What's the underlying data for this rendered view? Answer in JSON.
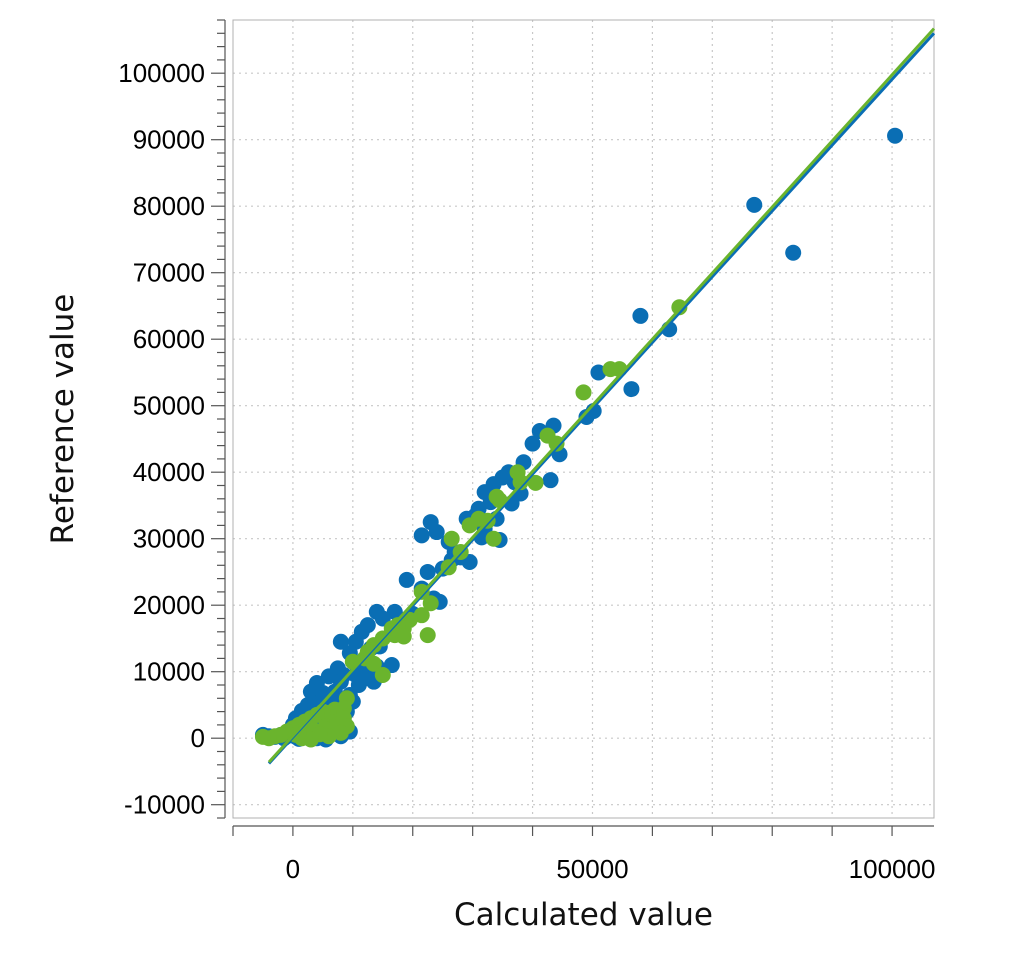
{
  "chart_data": {
    "type": "scatter",
    "xlabel": "Calculated value",
    "ylabel": "Reference value",
    "xlim": [
      -10000,
      107000
    ],
    "ylim": [
      -12000,
      108000
    ],
    "x_ticks": [
      0,
      50000,
      100000
    ],
    "x_tick_labels": [
      "0",
      "50000",
      "100000"
    ],
    "y_ticks": [
      -10000,
      0,
      10000,
      20000,
      30000,
      40000,
      50000,
      60000,
      70000,
      80000,
      90000,
      100000
    ],
    "y_tick_labels": [
      "-10000",
      "0",
      "10000",
      "20000",
      "30000",
      "40000",
      "50000",
      "60000",
      "70000",
      "80000",
      "90000",
      "100000"
    ],
    "grid": true,
    "legend": "none",
    "series": [
      {
        "color": "#0a6eb4",
        "points": [
          [
            100500,
            90600
          ],
          [
            77000,
            80200
          ],
          [
            83500,
            73000
          ],
          [
            58000,
            63500
          ],
          [
            62800,
            61500
          ],
          [
            51000,
            55000
          ],
          [
            56500,
            52500
          ],
          [
            50200,
            49200
          ],
          [
            49000,
            48300
          ],
          [
            43500,
            47000
          ],
          [
            41200,
            46200
          ],
          [
            40000,
            44300
          ],
          [
            44500,
            42700
          ],
          [
            38500,
            41500
          ],
          [
            36000,
            40000
          ],
          [
            35000,
            39200
          ],
          [
            33500,
            38200
          ],
          [
            37000,
            38500
          ],
          [
            43000,
            38800
          ],
          [
            38000,
            36800
          ],
          [
            32000,
            37000
          ],
          [
            36500,
            35300
          ],
          [
            33000,
            35500
          ],
          [
            31000,
            34500
          ],
          [
            30500,
            33500
          ],
          [
            29000,
            33000
          ],
          [
            34000,
            33000
          ],
          [
            32000,
            31500
          ],
          [
            31500,
            30200
          ],
          [
            34500,
            29800
          ],
          [
            21500,
            30500
          ],
          [
            23000,
            32500
          ],
          [
            24000,
            31000
          ],
          [
            26000,
            29500
          ],
          [
            27000,
            28000
          ],
          [
            28000,
            27200
          ],
          [
            29500,
            26500
          ],
          [
            25000,
            25500
          ],
          [
            22500,
            25000
          ],
          [
            26500,
            26800
          ],
          [
            19000,
            23800
          ],
          [
            21500,
            22500
          ],
          [
            23500,
            21000
          ],
          [
            24500,
            20500
          ],
          [
            17000,
            19000
          ],
          [
            20000,
            18700
          ],
          [
            18500,
            17800
          ],
          [
            15000,
            18000
          ],
          [
            14000,
            19000
          ],
          [
            12500,
            17000
          ],
          [
            16500,
            15700
          ],
          [
            18000,
            16500
          ],
          [
            11500,
            16000
          ],
          [
            10500,
            14500
          ],
          [
            8000,
            14500
          ],
          [
            13000,
            13500
          ],
          [
            14500,
            13800
          ],
          [
            9500,
            12800
          ],
          [
            11500,
            11500
          ],
          [
            12500,
            10500
          ],
          [
            14000,
            10800
          ],
          [
            16500,
            11000
          ],
          [
            7500,
            10500
          ],
          [
            8500,
            9500
          ],
          [
            10500,
            9500
          ],
          [
            12000,
            9000
          ],
          [
            13500,
            8500
          ],
          [
            6000,
            9300
          ],
          [
            8000,
            8500
          ],
          [
            11000,
            8000
          ],
          [
            4000,
            8300
          ],
          [
            3000,
            7000
          ],
          [
            5000,
            6800
          ],
          [
            7000,
            7000
          ],
          [
            9500,
            6500
          ],
          [
            6500,
            5600
          ],
          [
            8000,
            5000
          ],
          [
            10000,
            5500
          ],
          [
            2500,
            5000
          ],
          [
            4000,
            5200
          ],
          [
            5500,
            4500
          ],
          [
            7500,
            3500
          ],
          [
            9000,
            4000
          ],
          [
            1500,
            4100
          ],
          [
            3000,
            3500
          ],
          [
            4500,
            3000
          ],
          [
            6000,
            2500
          ],
          [
            8500,
            2000
          ],
          [
            500,
            3000
          ],
          [
            2000,
            2500
          ],
          [
            3500,
            2000
          ],
          [
            5000,
            1800
          ],
          [
            7000,
            1500
          ],
          [
            9500,
            1000
          ],
          [
            0,
            2000
          ],
          [
            1000,
            1500
          ],
          [
            2500,
            1200
          ],
          [
            4500,
            1000
          ],
          [
            6500,
            700
          ],
          [
            8000,
            300
          ],
          [
            -500,
            1000
          ],
          [
            1500,
            800
          ],
          [
            3000,
            600
          ],
          [
            5000,
            300
          ],
          [
            -2000,
            500
          ],
          [
            -1000,
            300
          ],
          [
            500,
            200
          ],
          [
            2000,
            100
          ],
          [
            4000,
            0
          ],
          [
            5500,
            -200
          ],
          [
            -3000,
            200
          ],
          [
            -4000,
            300
          ],
          [
            -5000,
            500
          ],
          [
            -1500,
            0
          ],
          [
            1000,
            -100
          ]
        ]
      },
      {
        "color": "#6ab42d",
        "points": [
          [
            64500,
            64800
          ],
          [
            54500,
            55500
          ],
          [
            53000,
            55500
          ],
          [
            48500,
            52000
          ],
          [
            42500,
            45500
          ],
          [
            44000,
            44300
          ],
          [
            37500,
            40000
          ],
          [
            38000,
            38500
          ],
          [
            40500,
            38400
          ],
          [
            34500,
            35800
          ],
          [
            34000,
            36300
          ],
          [
            31000,
            33000
          ],
          [
            32500,
            32700
          ],
          [
            29500,
            32000
          ],
          [
            33500,
            30000
          ],
          [
            26500,
            30000
          ],
          [
            28000,
            28000
          ],
          [
            26000,
            25700
          ],
          [
            21500,
            22000
          ],
          [
            23000,
            20300
          ],
          [
            21500,
            18500
          ],
          [
            22500,
            15500
          ],
          [
            19500,
            17800
          ],
          [
            18500,
            16500
          ],
          [
            17500,
            17000
          ],
          [
            16500,
            16500
          ],
          [
            17000,
            15500
          ],
          [
            18500,
            15300
          ],
          [
            15000,
            15000
          ],
          [
            13500,
            14000
          ],
          [
            12500,
            13000
          ],
          [
            12000,
            12000
          ],
          [
            13500,
            11200
          ],
          [
            15000,
            9500
          ],
          [
            10000,
            11500
          ],
          [
            9000,
            6000
          ],
          [
            8500,
            4500
          ],
          [
            7000,
            4300
          ],
          [
            6000,
            3800
          ],
          [
            5000,
            4000
          ],
          [
            4000,
            3500
          ],
          [
            3000,
            3000
          ],
          [
            2000,
            2500
          ],
          [
            1000,
            2000
          ],
          [
            0,
            1500
          ],
          [
            -1000,
            1000
          ],
          [
            -2000,
            500
          ],
          [
            -3000,
            300
          ],
          [
            -4000,
            0
          ],
          [
            -5000,
            200
          ],
          [
            500,
            500
          ],
          [
            1500,
            0
          ],
          [
            2500,
            800
          ],
          [
            3500,
            1200
          ],
          [
            5500,
            1800
          ],
          [
            6500,
            1500
          ],
          [
            7500,
            2500
          ],
          [
            8500,
            3000
          ],
          [
            9000,
            1800
          ],
          [
            8000,
            800
          ],
          [
            6000,
            300
          ],
          [
            4500,
            600
          ],
          [
            3000,
            -200
          ],
          [
            2000,
            300
          ],
          [
            1000,
            800
          ]
        ]
      }
    ],
    "fit_lines": [
      {
        "color": "#0a6eb4",
        "x": [
          -4000,
          107000
        ],
        "y": [
          -3800,
          106000
        ]
      },
      {
        "color": "#6ab42d",
        "x": [
          -4000,
          107000
        ],
        "y": [
          -3600,
          106700
        ]
      }
    ]
  }
}
